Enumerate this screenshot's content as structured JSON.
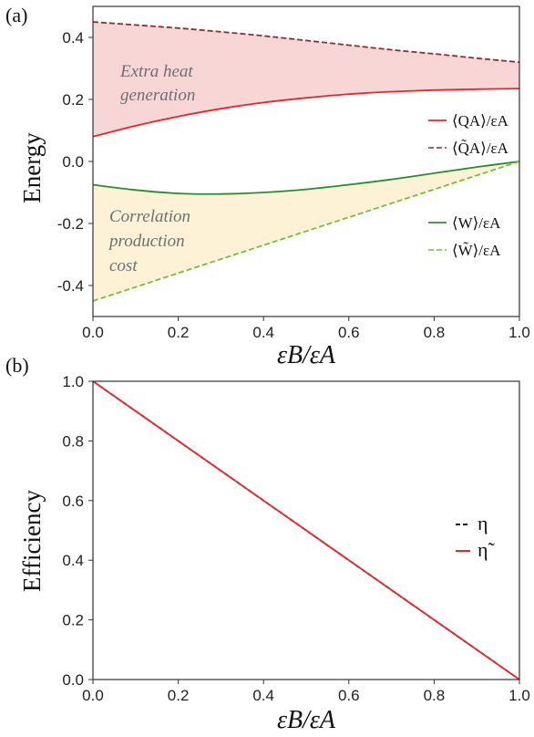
{
  "chart_data": [
    {
      "panel_label": "(a)",
      "type": "line",
      "xlabel": "εB/εA",
      "ylabel": "Energy",
      "xlim": [
        0,
        1
      ],
      "ylim": [
        -0.5,
        0.5
      ],
      "xticks": [
        "0.0",
        "0.2",
        "0.4",
        "0.6",
        "0.8",
        "1.0"
      ],
      "yticks": [
        "-0.4",
        "-0.2",
        "0.0",
        "0.2",
        "0.4"
      ],
      "x": [
        0.0,
        0.1,
        0.2,
        0.3,
        0.4,
        0.5,
        0.6,
        0.7,
        0.8,
        0.9,
        1.0
      ],
      "series": [
        {
          "name": "⟨QA⟩/εA",
          "color": "#e8262b",
          "dash": "solid",
          "values": [
            0.08,
            0.115,
            0.145,
            0.17,
            0.19,
            0.205,
            0.217,
            0.225,
            0.23,
            0.233,
            0.235
          ]
        },
        {
          "name": "⟨Q̃A⟩/εA",
          "color": "#8b2f2f",
          "dash": "dashed",
          "values": [
            0.45,
            0.44,
            0.43,
            0.418,
            0.405,
            0.39,
            0.375,
            0.36,
            0.347,
            0.333,
            0.32
          ]
        },
        {
          "name": "⟨W⟩/εA",
          "color": "#2f8a2f",
          "dash": "solid",
          "values": [
            -0.075,
            -0.092,
            -0.103,
            -0.105,
            -0.1,
            -0.09,
            -0.075,
            -0.058,
            -0.038,
            -0.018,
            0.0
          ]
        },
        {
          "name": "⟨W̃⟩/εA",
          "color": "#6fc23a",
          "dash": "dashed",
          "values": [
            -0.45,
            -0.405,
            -0.36,
            -0.315,
            -0.27,
            -0.225,
            -0.18,
            -0.135,
            -0.09,
            -0.045,
            0.0
          ]
        }
      ],
      "fills": [
        {
          "between": [
            "⟨Q̃A⟩/εA",
            "⟨QA⟩/εA"
          ],
          "color": "#f9d6d6"
        },
        {
          "between": [
            "⟨W⟩/εA",
            "⟨W̃⟩/εA"
          ],
          "color": "#fdf1d6"
        }
      ],
      "annotations": [
        {
          "lines": [
            "Extra heat",
            "generation"
          ]
        },
        {
          "lines": [
            "Correlation",
            "production",
            "cost"
          ]
        }
      ],
      "legend_placement": "right"
    },
    {
      "panel_label": "(b)",
      "type": "line",
      "xlabel": "εB/εA",
      "ylabel": "Efficiency",
      "xlim": [
        0,
        1
      ],
      "ylim": [
        0,
        1
      ],
      "xticks": [
        "0.0",
        "0.2",
        "0.4",
        "0.6",
        "0.8",
        "1.0"
      ],
      "yticks": [
        "0.0",
        "0.2",
        "0.4",
        "0.6",
        "0.8",
        "1.0"
      ],
      "x": [
        0.0,
        1.0
      ],
      "series": [
        {
          "name": "η",
          "color": "#111111",
          "dash": "dashed",
          "values": [
            1.0,
            0.0
          ]
        },
        {
          "name": "η̃",
          "color": "#e8262b",
          "dash": "solid",
          "values": [
            1.0,
            0.0
          ]
        }
      ],
      "legend_placement": "right"
    }
  ]
}
